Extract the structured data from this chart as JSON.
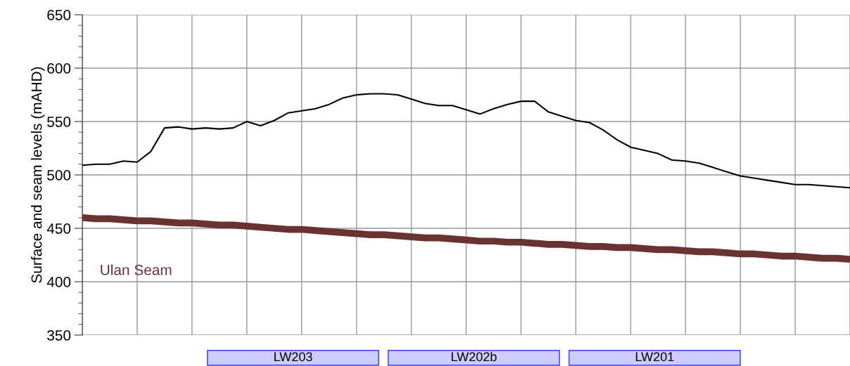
{
  "chart_data": {
    "type": "line",
    "ylabel": "Surface and seam levels (mAHD)",
    "categories": [
      null,
      null,
      null,
      null,
      null,
      null,
      null,
      null,
      null,
      null,
      null,
      null,
      null,
      null,
      null,
      null,
      null,
      null,
      null,
      null,
      null,
      null,
      null,
      null,
      null,
      null,
      null,
      null,
      null,
      null,
      null,
      null,
      null,
      null,
      null,
      null,
      null,
      null,
      null,
      null,
      null,
      null,
      null,
      null,
      null,
      null,
      null,
      null,
      null,
      null,
      null,
      null,
      null,
      null,
      null,
      null,
      null
    ],
    "ylim": [
      350,
      650
    ],
    "yticks": [
      350,
      400,
      450,
      500,
      550,
      600,
      650
    ],
    "grid": true,
    "legend": "bottom left",
    "series": [
      {
        "color": "#000000",
        "values": [
          509,
          510,
          510,
          513,
          512,
          522,
          544,
          545,
          543,
          544,
          543,
          544,
          550,
          546,
          551,
          558,
          560,
          562,
          566,
          572,
          575,
          576,
          576,
          575,
          571,
          567,
          565,
          565,
          561,
          557,
          562,
          566,
          569,
          569,
          559,
          555,
          551,
          549,
          542,
          533,
          526,
          523,
          520,
          514,
          513,
          511,
          507,
          503,
          499,
          497,
          495,
          493,
          491,
          491,
          490,
          489,
          488
        ]
      },
      {
        "name": "Ulan Seam",
        "color": "#6b3232",
        "values": [
          460,
          459,
          459,
          458,
          457,
          457,
          456,
          455,
          455,
          454,
          453,
          453,
          452,
          451,
          450,
          449,
          449,
          448,
          447,
          446,
          445,
          444,
          444,
          443,
          442,
          441,
          441,
          440,
          439,
          438,
          438,
          437,
          437,
          436,
          435,
          435,
          434,
          433,
          433,
          432,
          432,
          431,
          430,
          430,
          429,
          428,
          428,
          427,
          426,
          426,
          425,
          424,
          424,
          423,
          422,
          422,
          421
        ]
      }
    ],
    "annotations": [
      "LW203",
      "LW202b",
      "LW201"
    ]
  }
}
